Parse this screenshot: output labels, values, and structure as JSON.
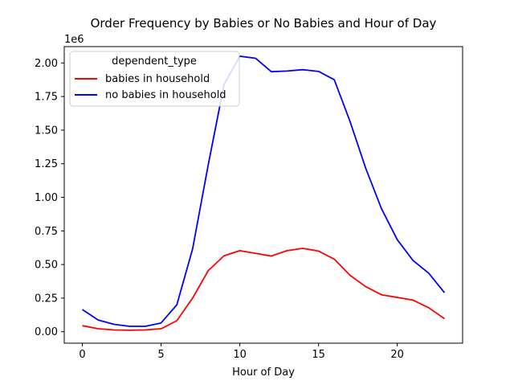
{
  "chart_data": {
    "type": "line",
    "title": "Order Frequency by Babies or No Babies and Hour of Day",
    "xlabel": "Hour of Day",
    "ylabel": "",
    "y_offset_text": "1e6",
    "x": [
      0,
      1,
      2,
      3,
      4,
      5,
      6,
      7,
      8,
      9,
      10,
      11,
      12,
      13,
      14,
      15,
      16,
      17,
      18,
      19,
      20,
      21,
      22,
      23
    ],
    "xlim": [
      -1.15,
      24.15
    ],
    "ylim": [
      -0.0855,
      2.1215
    ],
    "x_ticks": [
      0,
      5,
      10,
      15,
      20
    ],
    "x_tick_labels": [
      "0",
      "5",
      "10",
      "15",
      "20"
    ],
    "y_ticks": [
      0,
      0.25,
      0.5,
      0.75,
      1.0,
      1.25,
      1.5,
      1.75,
      2.0
    ],
    "y_tick_labels": [
      "0.00",
      "0.25",
      "0.50",
      "0.75",
      "1.00",
      "1.25",
      "1.50",
      "1.75",
      "2.00"
    ],
    "grid": false,
    "legend": {
      "title": "dependent_type",
      "placement": "top-left"
    },
    "series": [
      {
        "name": "babies in household",
        "color": "#ff0000",
        "values": [
          0.045,
          0.022,
          0.013,
          0.011,
          0.013,
          0.022,
          0.082,
          0.25,
          0.455,
          0.565,
          0.603,
          0.583,
          0.563,
          0.603,
          0.62,
          0.6,
          0.54,
          0.42,
          0.335,
          0.275,
          0.255,
          0.235,
          0.178,
          0.097
        ]
      },
      {
        "name": "no babies in household",
        "color": "#0000ff",
        "values": [
          0.165,
          0.087,
          0.055,
          0.04,
          0.04,
          0.065,
          0.2,
          0.615,
          1.245,
          1.84,
          2.05,
          2.035,
          1.935,
          1.94,
          1.95,
          1.937,
          1.875,
          1.565,
          1.215,
          0.915,
          0.685,
          0.53,
          0.435,
          0.29
        ]
      }
    ]
  }
}
